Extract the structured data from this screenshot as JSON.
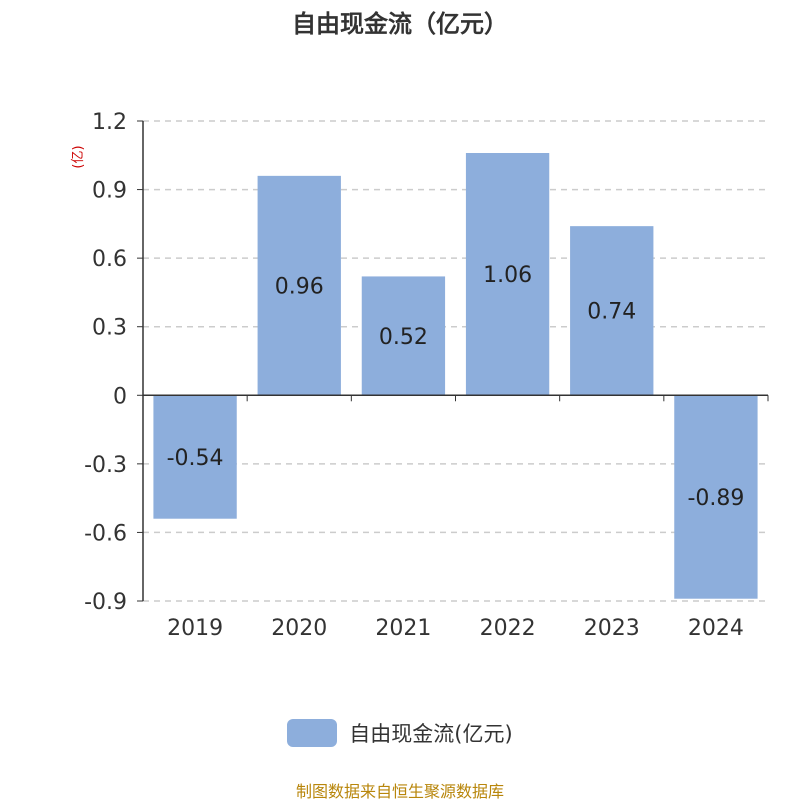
{
  "chart_data": {
    "type": "bar",
    "title": "自由现金流（亿元）",
    "ylabel": "(亿)",
    "categories": [
      "2019",
      "2020",
      "2021",
      "2022",
      "2023",
      "2024"
    ],
    "series": [
      {
        "name": "自由现金流(亿元)",
        "values": [
          -0.54,
          0.96,
          0.52,
          1.06,
          0.74,
          -0.89
        ]
      }
    ],
    "data_labels": [
      "-0.54",
      "0.96",
      "0.52",
      "1.06",
      "0.74",
      "-0.89"
    ],
    "ylim": [
      -0.9,
      1.2
    ],
    "yticks": [
      "1.2",
      "0.9",
      "0.6",
      "0.3",
      "0",
      "-0.3",
      "-0.6",
      "-0.9"
    ],
    "grid": true,
    "legend_position": "bottom",
    "colors": {
      "bar": "#8daedc",
      "grid": "#cccccc",
      "axis": "#333333",
      "ylabel": "#cc0000"
    }
  },
  "footer": {
    "source": "制图数据来自恒生聚源数据库"
  }
}
